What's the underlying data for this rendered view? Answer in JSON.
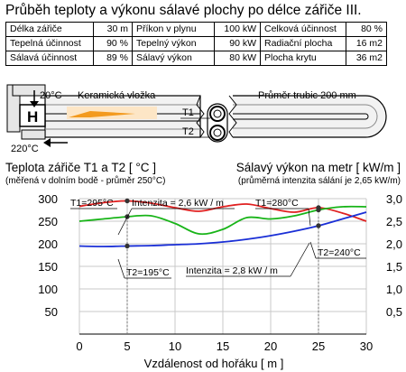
{
  "title": "Průběh teploty a výkonu sálavé plochy po délce zářiče III.",
  "specs": [
    [
      {
        "label": "Délka zářiče",
        "value": "30 m"
      },
      {
        "label": "Příkon v plynu",
        "value": "100 kW"
      },
      {
        "label": "Celková účinnost",
        "value": "80 %"
      }
    ],
    [
      {
        "label": "Tepelná účinnost",
        "value": "90 %"
      },
      {
        "label": "Tepelný výkon",
        "value": "90 kW"
      },
      {
        "label": "Radiační plocha",
        "value": "16 m2"
      }
    ],
    [
      {
        "label": "Sálavá účinnost",
        "value": "89 %"
      },
      {
        "label": "Sálavý výkon",
        "value": "80 kW"
      },
      {
        "label": "Plocha krytu",
        "value": "36 m2"
      }
    ]
  ],
  "diagram": {
    "inlet_temp": "20°C",
    "outlet_temp": "220°C",
    "ceramic_label": "Keramická vložka",
    "tube_diameter_label": "Průměr trubic 200 mm",
    "burner_label": "H",
    "t1_label": "T1",
    "t2_label": "T2",
    "colors": {
      "flame": "#f39a1e",
      "tube_fill": "#cfcfcf"
    }
  },
  "chart_data": {
    "type": "line",
    "title_left": "Teplota zářiče T1 a T2 [ °C ]",
    "subtitle_left": "(měřená v dolním bodě - průměr 250°C)",
    "title_right": "Sálavý výkon na metr [ kW/m ]",
    "subtitle_right": "(průměrná intenzita sálání je 2,65 kW/m)",
    "xlabel": "Vzdálenost od hořáku [ m ]",
    "xlim": [
      0,
      30
    ],
    "x_ticks": [
      "0",
      "5",
      "10",
      "15",
      "20",
      "25",
      "30"
    ],
    "y_left_lim": [
      0,
      300
    ],
    "y_left_ticks": [
      "300",
      "250",
      "200",
      "150",
      "100",
      "50"
    ],
    "y_right_lim": [
      0,
      3.0
    ],
    "y_right_ticks": [
      "3,0",
      "2,5",
      "2,0",
      "1,5",
      "1,0",
      "0,5"
    ],
    "grid": true,
    "series": [
      {
        "name": "T1",
        "color": "#e02020",
        "axis": "left",
        "x": [
          0,
          2.5,
          5,
          7.5,
          10,
          12.5,
          15,
          17.5,
          20,
          22.5,
          25,
          27.5,
          30
        ],
        "y": [
          283,
          291,
          295,
          290,
          280,
          272,
          282,
          288,
          278,
          270,
          280,
          268,
          250
        ]
      },
      {
        "name": "",
        "color": "#18b418",
        "axis": "left",
        "x": [
          0,
          2.5,
          5,
          7.5,
          10,
          12.5,
          15,
          17.5,
          20,
          22.5,
          25,
          27.5,
          30
        ],
        "y": [
          250,
          255,
          260,
          262,
          245,
          222,
          232,
          258,
          255,
          262,
          275,
          282,
          282
        ]
      },
      {
        "name": "T2",
        "color": "#1a2fd6",
        "axis": "left",
        "x": [
          0,
          2.5,
          5,
          7.5,
          10,
          12.5,
          15,
          17.5,
          20,
          22.5,
          25,
          27.5,
          30
        ],
        "y": [
          195,
          194,
          195,
          196,
          198,
          200,
          204,
          210,
          218,
          228,
          240,
          255,
          270
        ]
      }
    ],
    "markers": [
      {
        "x": 5,
        "y": 295,
        "color": "#e02020"
      },
      {
        "x": 5,
        "y": 260,
        "color": "#18b418"
      },
      {
        "x": 5,
        "y": 195,
        "color": "#1a2fd6"
      },
      {
        "x": 25,
        "y": 280,
        "color": "#e02020"
      },
      {
        "x": 25,
        "y": 275,
        "color": "#18b418"
      },
      {
        "x": 25,
        "y": 240,
        "color": "#1a2fd6"
      }
    ],
    "annotations": {
      "t1_at_5": "T1=295°C",
      "t2_at_5": "T2=195°C",
      "t1_at_25": "T1=280°C",
      "t2_at_25": "T2=240°C",
      "intensity_at_5": "Intenzita = 2,6 kW / m",
      "intensity_at_25": "Intenzita = 2,8 kW / m"
    }
  }
}
